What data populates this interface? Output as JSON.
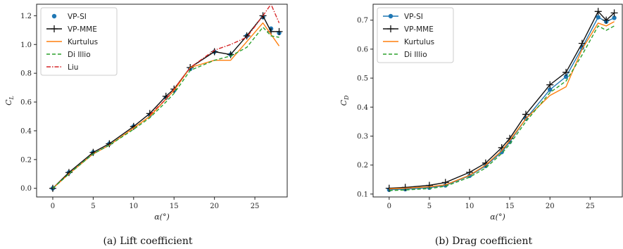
{
  "chart_data": [
    {
      "type": "line",
      "caption": "(a)  Lift coefficient",
      "xlabel": "α(°)",
      "ylabel": "C_L",
      "xlim": [
        -2,
        29
      ],
      "ylim": [
        -0.06,
        1.28
      ],
      "xticks": [
        "0",
        "5",
        "10",
        "15",
        "20",
        "25"
      ],
      "yticks": [
        "0.0",
        "0.2",
        "0.4",
        "0.6",
        "0.8",
        "1.0",
        "1.2"
      ],
      "legend_position": "top-left",
      "series": [
        {
          "name": "VP-SI",
          "color": "#1f77b4",
          "style": "markers-only",
          "x": [
            0,
            2,
            5,
            7,
            10,
            12,
            14,
            15,
            17,
            20,
            22,
            24,
            26,
            27,
            28
          ],
          "y": [
            0.0,
            0.11,
            0.25,
            0.31,
            0.43,
            0.51,
            0.63,
            0.68,
            0.83,
            0.95,
            0.93,
            1.06,
            1.19,
            1.11,
            1.08
          ]
        },
        {
          "name": "VP-MME",
          "color": "#111111",
          "style": "line-plus",
          "x": [
            0,
            2,
            5,
            7,
            10,
            12,
            14,
            15,
            17,
            20,
            22,
            24,
            26,
            27,
            28
          ],
          "y": [
            0.0,
            0.11,
            0.25,
            0.31,
            0.43,
            0.52,
            0.64,
            0.69,
            0.84,
            0.95,
            0.93,
            1.06,
            1.2,
            1.09,
            1.09
          ]
        },
        {
          "name": "Kurtulus",
          "color": "#ff7f0e",
          "style": "solid",
          "x": [
            0,
            2,
            5,
            7,
            10,
            12,
            14,
            15,
            17,
            20,
            22,
            24,
            26,
            27,
            28
          ],
          "y": [
            0.0,
            0.1,
            0.24,
            0.3,
            0.42,
            0.5,
            0.62,
            0.68,
            0.84,
            0.89,
            0.89,
            1.02,
            1.15,
            1.07,
            0.99
          ]
        },
        {
          "name": "Di Illio",
          "color": "#2ca02c",
          "style": "dashed",
          "x": [
            0,
            2,
            5,
            7,
            10,
            12,
            14,
            15,
            17,
            20,
            22,
            24,
            26,
            27,
            28
          ],
          "y": [
            0.0,
            0.1,
            0.24,
            0.3,
            0.41,
            0.49,
            0.6,
            0.66,
            0.82,
            0.89,
            0.92,
            0.98,
            1.12,
            1.06,
            1.05
          ]
        },
        {
          "name": "Liu",
          "color": "#d62728",
          "style": "dashdot",
          "x": [
            12,
            14,
            15,
            17,
            20,
            22,
            24,
            26,
            27,
            28
          ],
          "y": [
            0.51,
            0.62,
            0.69,
            0.84,
            0.96,
            1.0,
            1.05,
            1.2,
            1.28,
            1.15
          ]
        }
      ]
    },
    {
      "type": "line",
      "caption": "(b)  Drag coefficient",
      "xlabel": "α(°)",
      "ylabel": "C_D",
      "xlim": [
        -2,
        29
      ],
      "ylim": [
        0.09,
        0.755
      ],
      "xticks": [
        "0",
        "5",
        "10",
        "15",
        "20",
        "25"
      ],
      "yticks": [
        "0.1",
        "0.2",
        "0.3",
        "0.4",
        "0.5",
        "0.6",
        "0.7"
      ],
      "legend_position": "top-left",
      "series": [
        {
          "name": "VP-SI",
          "color": "#1f77b4",
          "style": "line-dot",
          "x": [
            0,
            2,
            5,
            7,
            10,
            12,
            14,
            15,
            17,
            20,
            22,
            24,
            26,
            27,
            28
          ],
          "y": [
            0.115,
            0.117,
            0.122,
            0.13,
            0.163,
            0.197,
            0.245,
            0.28,
            0.36,
            0.46,
            0.505,
            0.605,
            0.71,
            0.695,
            0.708
          ]
        },
        {
          "name": "VP-MME",
          "color": "#111111",
          "style": "line-plus",
          "x": [
            0,
            2,
            5,
            7,
            10,
            12,
            14,
            15,
            17,
            20,
            22,
            24,
            26,
            27,
            28
          ],
          "y": [
            0.12,
            0.123,
            0.13,
            0.14,
            0.175,
            0.207,
            0.26,
            0.292,
            0.375,
            0.477,
            0.52,
            0.62,
            0.73,
            0.7,
            0.725
          ]
        },
        {
          "name": "Kurtulus",
          "color": "#ff7f0e",
          "style": "solid",
          "x": [
            0,
            2,
            5,
            7,
            10,
            12,
            14,
            15,
            17,
            20,
            22,
            24,
            26,
            27,
            28
          ],
          "y": [
            0.118,
            0.12,
            0.125,
            0.132,
            0.165,
            0.2,
            0.25,
            0.285,
            0.36,
            0.44,
            0.47,
            0.6,
            0.69,
            0.68,
            0.695
          ]
        },
        {
          "name": "Di Illio",
          "color": "#2ca02c",
          "style": "dashed",
          "x": [
            0,
            2,
            5,
            7,
            10,
            12,
            14,
            15,
            17,
            20,
            22,
            24,
            26,
            27,
            28
          ],
          "y": [
            0.112,
            0.114,
            0.119,
            0.127,
            0.158,
            0.19,
            0.24,
            0.272,
            0.35,
            0.45,
            0.49,
            0.58,
            0.68,
            0.665,
            0.68
          ]
        }
      ]
    }
  ]
}
